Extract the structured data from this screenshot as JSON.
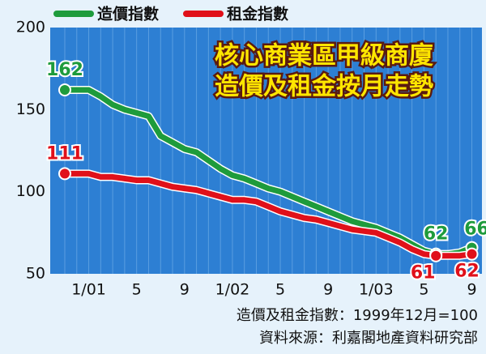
{
  "chart_data": {
    "type": "line",
    "title": [
      "核心商業區甲級商廈",
      "造價及租金按月走勢"
    ],
    "notes": [
      "造價及租金指數：1999年12月=100",
      "資料來源：利嘉閣地產資料研究部"
    ],
    "categories": [
      null,
      null,
      "1/01",
      null,
      null,
      null,
      "5",
      null,
      null,
      null,
      "9",
      null,
      null,
      null,
      "1/02",
      null,
      null,
      null,
      "5",
      null,
      null,
      null,
      "9",
      null,
      null,
      null,
      "1/03",
      null,
      null,
      null,
      "5",
      null,
      null,
      null,
      "9"
    ],
    "series": [
      {
        "name": "造價指數",
        "color": "#1e9b3c",
        "labeled": [
          0,
          31,
          34
        ],
        "values": [
          162,
          162,
          162,
          158,
          153,
          150,
          148,
          146,
          134,
          130,
          126,
          124,
          119,
          114,
          110,
          108,
          105,
          102,
          100,
          97,
          94,
          91,
          88,
          85,
          82,
          80,
          78,
          75,
          72,
          68,
          64,
          62,
          62,
          63,
          66
        ]
      },
      {
        "name": "租金指數",
        "color": "#e0101a",
        "labeled": [
          0,
          31,
          34
        ],
        "values": [
          111,
          111,
          111,
          109,
          109,
          108,
          107,
          107,
          105,
          103,
          102,
          101,
          99,
          97,
          95,
          95,
          94,
          91,
          88,
          86,
          84,
          83,
          81,
          79,
          77,
          76,
          75,
          72,
          69,
          65,
          62,
          61,
          61,
          61,
          62
        ]
      }
    ],
    "ylim": [
      50,
      200
    ],
    "yticks": [
      50,
      100,
      150,
      200
    ],
    "grid": false
  }
}
